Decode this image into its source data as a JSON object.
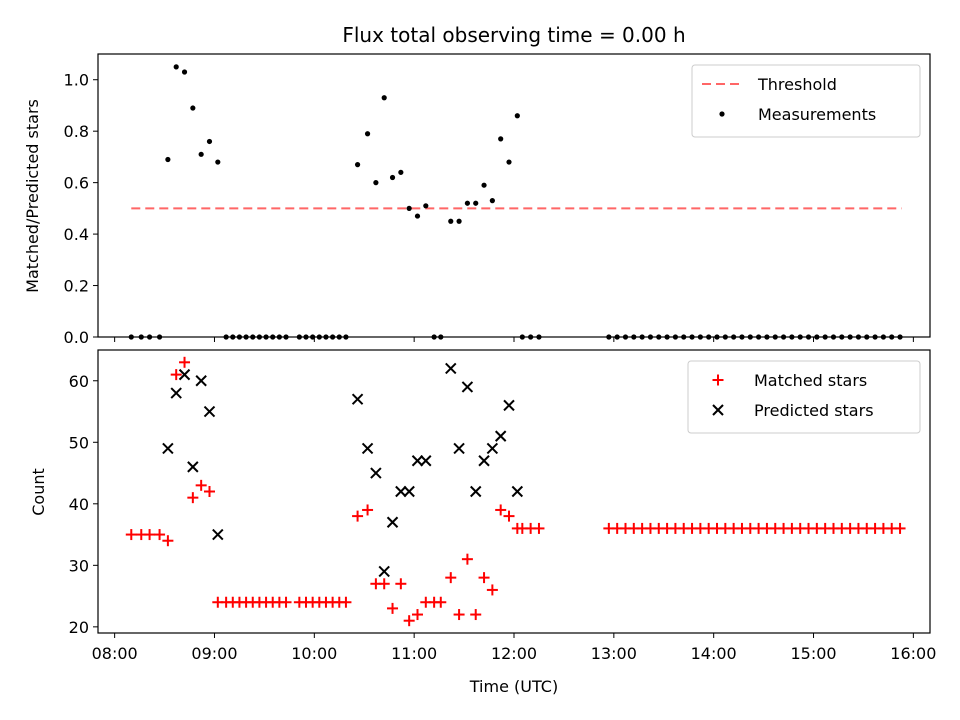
{
  "chart_data": {
    "title": "Flux total observing time = 0.00 h",
    "x_ticks": [
      "08:00",
      "09:00",
      "10:00",
      "11:00",
      "12:00",
      "13:00",
      "14:00",
      "15:00",
      "16:00"
    ],
    "xlabel": "Time (UTC)",
    "xlim": [
      "07:50",
      "16:10"
    ],
    "panels": [
      {
        "type": "scatter",
        "ylabel": "Matched/Predicted stars",
        "ylim": [
          0,
          1.1
        ],
        "y_ticks": [
          "0.0",
          "0.2",
          "0.4",
          "0.6",
          "0.8",
          "1.0"
        ],
        "legend_position": "top-right",
        "threshold": {
          "name": "Threshold",
          "y": 0.5,
          "x_start": "08:10",
          "x_end": "15:53",
          "color": "#ff6666"
        },
        "series": [
          {
            "name": "Measurements",
            "marker": "dot",
            "color": "#000000",
            "points": [
              [
                "08:10",
                0
              ],
              [
                "08:16",
                0
              ],
              [
                "08:21",
                0
              ],
              [
                "08:27",
                0
              ],
              [
                "08:32",
                0.69
              ],
              [
                "08:37",
                1.05
              ],
              [
                "08:42",
                1.03
              ],
              [
                "08:47",
                0.89
              ],
              [
                "08:52",
                0.71
              ],
              [
                "08:57",
                0.76
              ],
              [
                "09:02",
                0.68
              ],
              [
                "09:07",
                0
              ],
              [
                "09:11",
                0
              ],
              [
                "09:15",
                0
              ],
              [
                "09:19",
                0
              ],
              [
                "09:23",
                0
              ],
              [
                "09:27",
                0
              ],
              [
                "09:31",
                0
              ],
              [
                "09:35",
                0
              ],
              [
                "09:39",
                0
              ],
              [
                "09:43",
                0
              ],
              [
                "09:51",
                0
              ],
              [
                "09:55",
                0
              ],
              [
                "09:59",
                0
              ],
              [
                "10:03",
                0
              ],
              [
                "10:07",
                0
              ],
              [
                "10:11",
                0
              ],
              [
                "10:15",
                0
              ],
              [
                "10:19",
                0
              ],
              [
                "10:26",
                0.67
              ],
              [
                "10:32",
                0.79
              ],
              [
                "10:37",
                0.6
              ],
              [
                "10:42",
                0.93
              ],
              [
                "10:47",
                0.62
              ],
              [
                "10:52",
                0.64
              ],
              [
                "10:57",
                0.5
              ],
              [
                "11:02",
                0.47
              ],
              [
                "11:07",
                0.51
              ],
              [
                "11:12",
                0
              ],
              [
                "11:16",
                0
              ],
              [
                "11:22",
                0.45
              ],
              [
                "11:27",
                0.45
              ],
              [
                "11:32",
                0.52
              ],
              [
                "11:37",
                0.52
              ],
              [
                "11:42",
                0.59
              ],
              [
                "11:47",
                0.53
              ],
              [
                "11:52",
                0.77
              ],
              [
                "11:57",
                0.68
              ],
              [
                "12:02",
                0.86
              ],
              [
                "12:05",
                0
              ],
              [
                "12:10",
                0
              ],
              [
                "12:15",
                0
              ],
              [
                "12:57",
                0
              ],
              [
                "13:02",
                0
              ],
              [
                "13:07",
                0
              ],
              [
                "13:12",
                0
              ],
              [
                "13:17",
                0
              ],
              [
                "13:22",
                0
              ],
              [
                "13:27",
                0
              ],
              [
                "13:32",
                0
              ],
              [
                "13:37",
                0
              ],
              [
                "13:42",
                0
              ],
              [
                "13:47",
                0
              ],
              [
                "13:52",
                0
              ],
              [
                "13:57",
                0
              ],
              [
                "14:02",
                0
              ],
              [
                "14:07",
                0
              ],
              [
                "14:12",
                0
              ],
              [
                "14:17",
                0
              ],
              [
                "14:22",
                0
              ],
              [
                "14:27",
                0
              ],
              [
                "14:32",
                0
              ],
              [
                "14:37",
                0
              ],
              [
                "14:42",
                0
              ],
              [
                "14:47",
                0
              ],
              [
                "14:52",
                0
              ],
              [
                "14:57",
                0
              ],
              [
                "15:02",
                0
              ],
              [
                "15:07",
                0
              ],
              [
                "15:12",
                0
              ],
              [
                "15:17",
                0
              ],
              [
                "15:22",
                0
              ],
              [
                "15:27",
                0
              ],
              [
                "15:32",
                0
              ],
              [
                "15:37",
                0
              ],
              [
                "15:42",
                0
              ],
              [
                "15:47",
                0
              ],
              [
                "15:52",
                0
              ]
            ]
          }
        ]
      },
      {
        "type": "scatter",
        "ylabel": "Count",
        "ylim": [
          19,
          65
        ],
        "y_ticks": [
          "20",
          "30",
          "40",
          "50",
          "60"
        ],
        "legend_position": "top-right",
        "series": [
          {
            "name": "Matched stars",
            "marker": "plus",
            "color": "#ff0000",
            "points": [
              [
                "08:10",
                35
              ],
              [
                "08:16",
                35
              ],
              [
                "08:21",
                35
              ],
              [
                "08:27",
                35
              ],
              [
                "08:32",
                34
              ],
              [
                "08:37",
                61
              ],
              [
                "08:42",
                63
              ],
              [
                "08:47",
                41
              ],
              [
                "08:52",
                43
              ],
              [
                "08:57",
                42
              ],
              [
                "09:02",
                24
              ],
              [
                "09:07",
                24
              ],
              [
                "09:11",
                24
              ],
              [
                "09:15",
                24
              ],
              [
                "09:19",
                24
              ],
              [
                "09:23",
                24
              ],
              [
                "09:27",
                24
              ],
              [
                "09:31",
                24
              ],
              [
                "09:35",
                24
              ],
              [
                "09:39",
                24
              ],
              [
                "09:43",
                24
              ],
              [
                "09:51",
                24
              ],
              [
                "09:55",
                24
              ],
              [
                "09:59",
                24
              ],
              [
                "10:03",
                24
              ],
              [
                "10:07",
                24
              ],
              [
                "10:11",
                24
              ],
              [
                "10:15",
                24
              ],
              [
                "10:19",
                24
              ],
              [
                "10:26",
                38
              ],
              [
                "10:32",
                39
              ],
              [
                "10:37",
                27
              ],
              [
                "10:42",
                27
              ],
              [
                "10:47",
                23
              ],
              [
                "10:52",
                27
              ],
              [
                "10:57",
                21
              ],
              [
                "11:02",
                22
              ],
              [
                "11:07",
                24
              ],
              [
                "11:12",
                24
              ],
              [
                "11:16",
                24
              ],
              [
                "11:22",
                28
              ],
              [
                "11:27",
                22
              ],
              [
                "11:32",
                31
              ],
              [
                "11:37",
                22
              ],
              [
                "11:42",
                28
              ],
              [
                "11:47",
                26
              ],
              [
                "11:52",
                39
              ],
              [
                "11:57",
                38
              ],
              [
                "12:02",
                36
              ],
              [
                "12:05",
                36
              ],
              [
                "12:10",
                36
              ],
              [
                "12:15",
                36
              ],
              [
                "12:57",
                36
              ],
              [
                "13:02",
                36
              ],
              [
                "13:07",
                36
              ],
              [
                "13:12",
                36
              ],
              [
                "13:17",
                36
              ],
              [
                "13:22",
                36
              ],
              [
                "13:27",
                36
              ],
              [
                "13:32",
                36
              ],
              [
                "13:37",
                36
              ],
              [
                "13:42",
                36
              ],
              [
                "13:47",
                36
              ],
              [
                "13:52",
                36
              ],
              [
                "13:57",
                36
              ],
              [
                "14:02",
                36
              ],
              [
                "14:07",
                36
              ],
              [
                "14:12",
                36
              ],
              [
                "14:17",
                36
              ],
              [
                "14:22",
                36
              ],
              [
                "14:27",
                36
              ],
              [
                "14:32",
                36
              ],
              [
                "14:37",
                36
              ],
              [
                "14:42",
                36
              ],
              [
                "14:47",
                36
              ],
              [
                "14:52",
                36
              ],
              [
                "14:57",
                36
              ],
              [
                "15:02",
                36
              ],
              [
                "15:07",
                36
              ],
              [
                "15:12",
                36
              ],
              [
                "15:17",
                36
              ],
              [
                "15:22",
                36
              ],
              [
                "15:27",
                36
              ],
              [
                "15:32",
                36
              ],
              [
                "15:37",
                36
              ],
              [
                "15:42",
                36
              ],
              [
                "15:47",
                36
              ],
              [
                "15:52",
                36
              ]
            ]
          },
          {
            "name": "Predicted stars",
            "marker": "x",
            "color": "#000000",
            "points": [
              [
                "08:32",
                49
              ],
              [
                "08:37",
                58
              ],
              [
                "08:42",
                61
              ],
              [
                "08:47",
                46
              ],
              [
                "08:52",
                60
              ],
              [
                "08:57",
                55
              ],
              [
                "09:02",
                35
              ],
              [
                "10:26",
                57
              ],
              [
                "10:32",
                49
              ],
              [
                "10:37",
                45
              ],
              [
                "10:42",
                29
              ],
              [
                "10:47",
                37
              ],
              [
                "10:52",
                42
              ],
              [
                "10:57",
                42
              ],
              [
                "11:02",
                47
              ],
              [
                "11:07",
                47
              ],
              [
                "11:22",
                62
              ],
              [
                "11:27",
                49
              ],
              [
                "11:32",
                59
              ],
              [
                "11:37",
                42
              ],
              [
                "11:42",
                47
              ],
              [
                "11:47",
                49
              ],
              [
                "11:52",
                51
              ],
              [
                "11:57",
                56
              ],
              [
                "12:02",
                42
              ]
            ]
          }
        ]
      }
    ]
  }
}
